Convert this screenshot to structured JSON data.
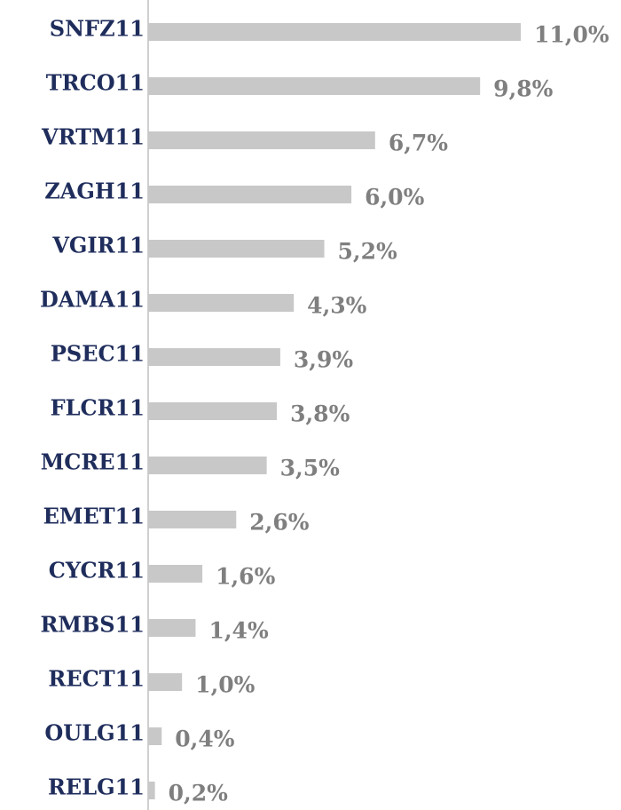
{
  "chart_data": {
    "type": "bar",
    "orientation": "horizontal",
    "categories": [
      "SNFZ11",
      "TRCO11",
      "VRTM11",
      "ZAGH11",
      "VGIR11",
      "DAMA11",
      "PSEC11",
      "FLCR11",
      "MCRE11",
      "EMET11",
      "CYCR11",
      "RMBS11",
      "RECT11",
      "OULG11",
      "RELG11"
    ],
    "values": [
      11.0,
      9.8,
      6.7,
      6.0,
      5.2,
      4.3,
      3.9,
      3.8,
      3.5,
      2.6,
      1.6,
      1.4,
      1.0,
      0.4,
      0.2
    ],
    "value_labels": [
      "11,0%",
      "9,8%",
      "6,7%",
      "6,0%",
      "5,2%",
      "4,3%",
      "3,9%",
      "3,8%",
      "3,5%",
      "2,6%",
      "1,6%",
      "1,4%",
      "1,0%",
      "0,4%",
      "0,2%"
    ],
    "color": "#c8c8c8"
  }
}
